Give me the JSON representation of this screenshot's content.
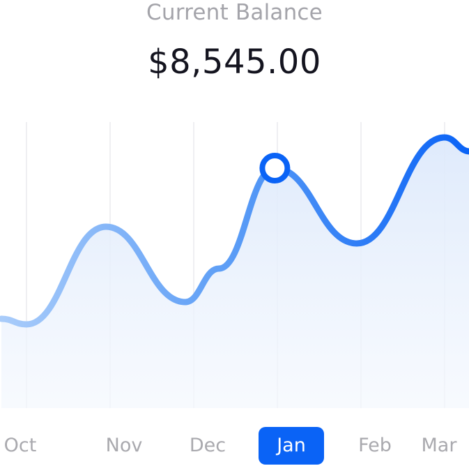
{
  "header": {
    "title": "Current Balance",
    "balance": "$8,545.00"
  },
  "colors": {
    "line_start": "#a9ccfa",
    "line_end": "#0a63f6",
    "grid": "#efeff2",
    "active_tab_bg": "#0a63f6",
    "label": "#a9a9ae"
  },
  "chart_data": {
    "type": "area",
    "title": "Current Balance",
    "categories": [
      "Oct",
      "Nov",
      "Dec",
      "Jan",
      "Feb",
      "Mar"
    ],
    "selected_category": "Jan",
    "y_axis_shown": false,
    "grid": "vertical",
    "series": [
      {
        "x": [
          -0.3,
          0.0,
          0.95,
          1.9,
          2.3,
          2.97,
          3.95,
          5.0,
          5.3
        ],
        "values": [
          32,
          30,
          65,
          38,
          50,
          86,
          59,
          97,
          92
        ]
      }
    ],
    "marker_index": 5,
    "y_range": [
      0,
      120
    ]
  }
}
